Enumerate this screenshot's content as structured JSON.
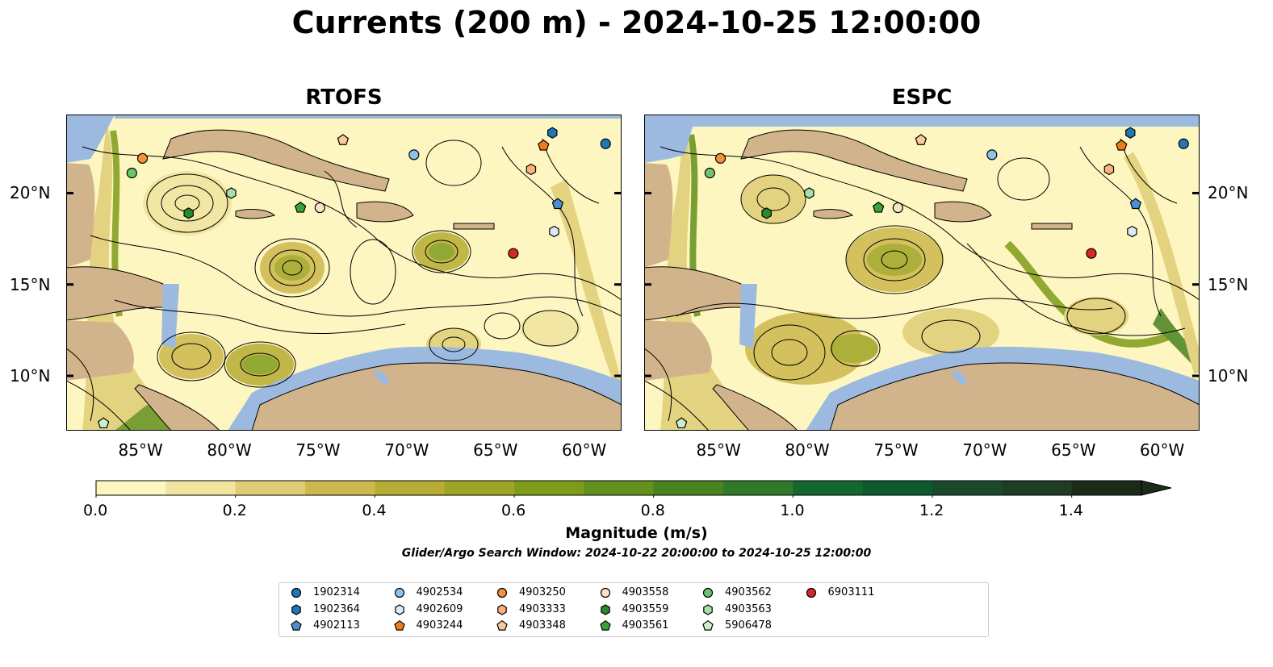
{
  "title": "Currents (200 m) - 2024-10-25 12:00:00",
  "panels": [
    {
      "title": "RTOFS"
    },
    {
      "title": "ESPC"
    }
  ],
  "axes": {
    "lon_ticks": [
      "85°W",
      "80°W",
      "75°W",
      "70°W",
      "65°W",
      "60°W"
    ],
    "lat_ticks": [
      "20°N",
      "15°N",
      "10°N"
    ]
  },
  "colorbar": {
    "label": "Magnitude (m/s)",
    "tick_labels": [
      "0.0",
      "0.2",
      "0.4",
      "0.6",
      "0.8",
      "1.0",
      "1.2",
      "1.4"
    ],
    "range": [
      0.0,
      1.5
    ],
    "colors": [
      "#fdf6c0",
      "#f0e49e",
      "#dfcc74",
      "#cdb84e",
      "#b7ad34",
      "#9ea424",
      "#7f9b1a",
      "#62901c",
      "#478420",
      "#2e7a2a",
      "#13672f",
      "#0c5a2e",
      "#1b4a2b",
      "#1f3d25",
      "#1c2a18"
    ],
    "extend": "max"
  },
  "search_window": "Glider/Argo Search Window: 2024-10-22 20:00:00 to 2024-10-25 12:00:00",
  "map_colors": {
    "ocean": "#9cb9e0",
    "land": "#d2b48c",
    "low_speed": "#fdf6c0",
    "mid_speed": "#c9b24a",
    "high_speed": "#5f8c1c"
  },
  "legend": [
    {
      "id": "1902314",
      "shape": "circle",
      "color": "#1f77b4"
    },
    {
      "id": "1902364",
      "shape": "hexagon",
      "color": "#1f77b4"
    },
    {
      "id": "4902113",
      "shape": "pentagon",
      "color": "#4a90d0"
    },
    {
      "id": "4902534",
      "shape": "circle",
      "color": "#8ec1e8"
    },
    {
      "id": "4902609",
      "shape": "hexagon",
      "color": "#dbeaf7"
    },
    {
      "id": "4903244",
      "shape": "pentagon",
      "color": "#f07c18"
    },
    {
      "id": "4903250",
      "shape": "circle",
      "color": "#f5913a"
    },
    {
      "id": "4903333",
      "shape": "hexagon",
      "color": "#fbb27a"
    },
    {
      "id": "4903348",
      "shape": "pentagon",
      "color": "#fcc999"
    },
    {
      "id": "4903558",
      "shape": "circle",
      "color": "#fde1c4"
    },
    {
      "id": "4903559",
      "shape": "hexagon",
      "color": "#2a8a2a"
    },
    {
      "id": "4903561",
      "shape": "pentagon",
      "color": "#3aa33a"
    },
    {
      "id": "4903562",
      "shape": "circle",
      "color": "#6cc46c"
    },
    {
      "id": "4903563",
      "shape": "hexagon",
      "color": "#a6e0a6"
    },
    {
      "id": "5906478",
      "shape": "pentagon",
      "color": "#cdeecd"
    },
    {
      "id": "6903111",
      "shape": "circle",
      "color": "#d62728"
    }
  ],
  "floats": [
    {
      "id": "1902314",
      "lon": -58.9,
      "lat": 22.7
    },
    {
      "id": "1902364",
      "lon": -61.9,
      "lat": 23.3
    },
    {
      "id": "4902113",
      "lon": -61.6,
      "lat": 19.4
    },
    {
      "id": "4902534",
      "lon": -69.7,
      "lat": 22.1
    },
    {
      "id": "4902609",
      "lon": -61.8,
      "lat": 17.9
    },
    {
      "id": "4903244",
      "lon": -62.4,
      "lat": 22.6
    },
    {
      "id": "4903250",
      "lon": -85.0,
      "lat": 21.9
    },
    {
      "id": "4903333",
      "lon": -63.1,
      "lat": 21.3
    },
    {
      "id": "4903348",
      "lon": -73.7,
      "lat": 22.9
    },
    {
      "id": "4903558",
      "lon": -75.0,
      "lat": 19.2
    },
    {
      "id": "4903559",
      "lon": -82.4,
      "lat": 18.9
    },
    {
      "id": "4903561",
      "lon": -76.1,
      "lat": 19.2
    },
    {
      "id": "4903562",
      "lon": -85.6,
      "lat": 21.1
    },
    {
      "id": "4903563",
      "lon": -80.0,
      "lat": 20.0
    },
    {
      "id": "5906478",
      "lon": -87.2,
      "lat": 7.4
    },
    {
      "id": "6903111",
      "lon": -64.1,
      "lat": 16.7
    }
  ]
}
